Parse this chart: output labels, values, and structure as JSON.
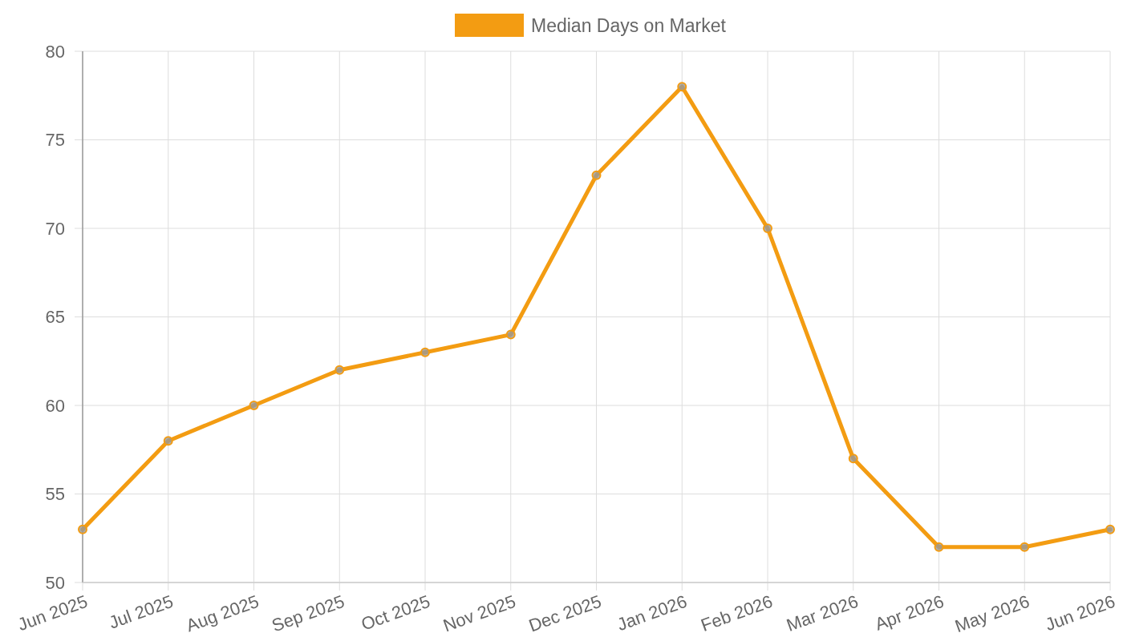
{
  "chart_data": {
    "type": "line",
    "categories": [
      "Jun 2025",
      "Jul 2025",
      "Aug 2025",
      "Sep 2025",
      "Oct 2025",
      "Nov 2025",
      "Dec 2025",
      "Jan 2026",
      "Feb 2026",
      "Mar 2026",
      "Apr 2026",
      "May 2026",
      "Jun 2026"
    ],
    "series": [
      {
        "name": "Median Days on Market",
        "color": "#f39c12",
        "values": [
          53,
          58,
          60,
          62,
          63,
          64,
          73,
          78,
          70,
          57,
          52,
          52,
          53
        ]
      }
    ],
    "ylim": [
      50,
      80
    ],
    "yticks": [
      50,
      55,
      60,
      65,
      70,
      75,
      80
    ],
    "grid": true,
    "legend": "top",
    "marker": "circle",
    "line_style": "solid"
  }
}
